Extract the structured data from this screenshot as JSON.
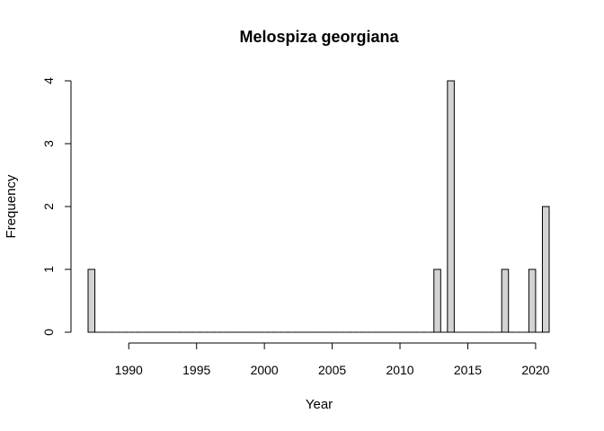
{
  "chart_data": {
    "type": "bar",
    "title": "Melospiza georgiana",
    "xlabel": "Year",
    "ylabel": "Frequency",
    "bin_width": 0.5,
    "bin_start": 1987,
    "bin_end": 2021,
    "bins": [
      {
        "x0": 1987.0,
        "x1": 1987.5,
        "value": 1
      },
      {
        "x0": 2012.5,
        "x1": 2013.0,
        "value": 1
      },
      {
        "x0": 2013.5,
        "x1": 2014.0,
        "value": 4
      },
      {
        "x0": 2017.5,
        "x1": 2018.0,
        "value": 1
      },
      {
        "x0": 2019.5,
        "x1": 2020.0,
        "value": 1
      },
      {
        "x0": 2020.5,
        "x1": 2021.0,
        "value": 2
      }
    ],
    "xlim": [
      1987,
      2021
    ],
    "ylim": [
      0,
      4
    ],
    "x_ticks": [
      "1990",
      "1995",
      "2000",
      "2005",
      "2010",
      "2015",
      "2020"
    ],
    "y_ticks": [
      "0",
      "1",
      "2",
      "3",
      "4"
    ],
    "grid": false,
    "colors": {
      "bar_fill": "#d3d3d3",
      "bar_stroke": "#000000"
    }
  }
}
